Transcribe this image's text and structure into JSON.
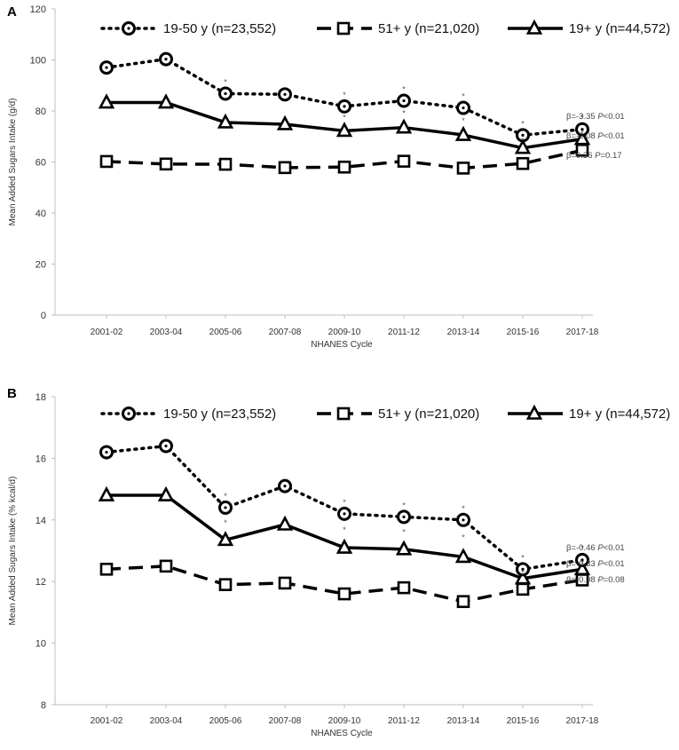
{
  "chart_data": [
    {
      "type": "line",
      "panel_label": "A",
      "categories": [
        "2001-02",
        "2003-04",
        "2005-06",
        "2007-08",
        "2009-10",
        "2011-12",
        "2013-14",
        "2015-16",
        "2017-18"
      ],
      "xlabel": "NHANES Cycle",
      "ylabel": "Mean Added Sugars Intake (g/d)",
      "ylim": [
        0,
        120
      ],
      "yticks": [
        "0",
        "20",
        "40",
        "60",
        "80",
        "100",
        "120"
      ],
      "series": [
        {
          "name": "19-50 y (n=23,552)",
          "style": "dotted-circle",
          "values": [
            97,
            100.3,
            86.8,
            86.5,
            81.8,
            84,
            81.2,
            70.5,
            72.8
          ],
          "significance": [
            false,
            false,
            true,
            false,
            true,
            true,
            true,
            true,
            true
          ],
          "trend": "β=-3.35 P<0.01",
          "beta": "β=-3.35 ",
          "p_label": "P",
          "p_value": "<0.01"
        },
        {
          "name": "51+ y (n=21,020)",
          "style": "dashed-square",
          "values": [
            60.2,
            59.2,
            59.1,
            57.8,
            58,
            60.3,
            57.6,
            59.4,
            64.6
          ],
          "significance": [
            false,
            false,
            false,
            false,
            false,
            false,
            false,
            false,
            false
          ],
          "trend": "β=0.36 P=0.17",
          "beta": "β=0.36 ",
          "p_label": "P",
          "p_value": "=0.17"
        },
        {
          "name": "19+ y (n=44,572)",
          "style": "solid-triangle",
          "values": [
            83.3,
            83.3,
            75.5,
            74.8,
            72.2,
            73.5,
            70.6,
            65.5,
            69
          ],
          "significance": [
            false,
            false,
            false,
            false,
            true,
            true,
            true,
            true,
            true
          ],
          "trend": "β=-2.08 P<0.01",
          "beta": "β=-2.08 ",
          "p_label": "P",
          "p_value": "<0.01"
        }
      ]
    },
    {
      "type": "line",
      "panel_label": "B",
      "categories": [
        "2001-02",
        "2003-04",
        "2005-06",
        "2007-08",
        "2009-10",
        "2011-12",
        "2013-14",
        "2015-16",
        "2017-18"
      ],
      "xlabel": "NHANES Cycle",
      "ylabel": "Mean Added Sugars Intake (% kcal/d)",
      "ylim": [
        8,
        18
      ],
      "yticks": [
        "8",
        "10",
        "12",
        "14",
        "16",
        "18"
      ],
      "series": [
        {
          "name": "19-50 y (n=23,552)",
          "style": "dotted-circle",
          "values": [
            16.2,
            16.4,
            14.4,
            15.1,
            14.2,
            14.1,
            14,
            12.4,
            12.7
          ],
          "significance": [
            false,
            false,
            true,
            false,
            true,
            true,
            true,
            true,
            true
          ],
          "trend": "β=-0.46 P<0.01",
          "beta": "β=-0.46 ",
          "p_label": "P",
          "p_value": "<0.01"
        },
        {
          "name": "51+ y (n=21,020)",
          "style": "dashed-square",
          "values": [
            12.4,
            12.5,
            11.9,
            11.95,
            11.6,
            11.8,
            11.35,
            11.75,
            12.05
          ],
          "significance": [
            false,
            false,
            false,
            false,
            false,
            false,
            false,
            false,
            false
          ],
          "trend": "β=-0.08 P=0.08",
          "beta": "β=-0.08 ",
          "p_label": "P",
          "p_value": "=0.08"
        },
        {
          "name": "19+ y (n=44,572)",
          "style": "solid-triangle",
          "values": [
            14.8,
            14.8,
            13.35,
            13.85,
            13.1,
            13.05,
            12.8,
            12.1,
            12.4
          ],
          "significance": [
            false,
            false,
            true,
            false,
            true,
            true,
            true,
            true,
            true
          ],
          "trend": "β=-0.33 P<0.01",
          "beta": "β=-0.33 ",
          "p_label": "P",
          "p_value": "<0.01"
        }
      ]
    }
  ],
  "significance_marker": "*"
}
